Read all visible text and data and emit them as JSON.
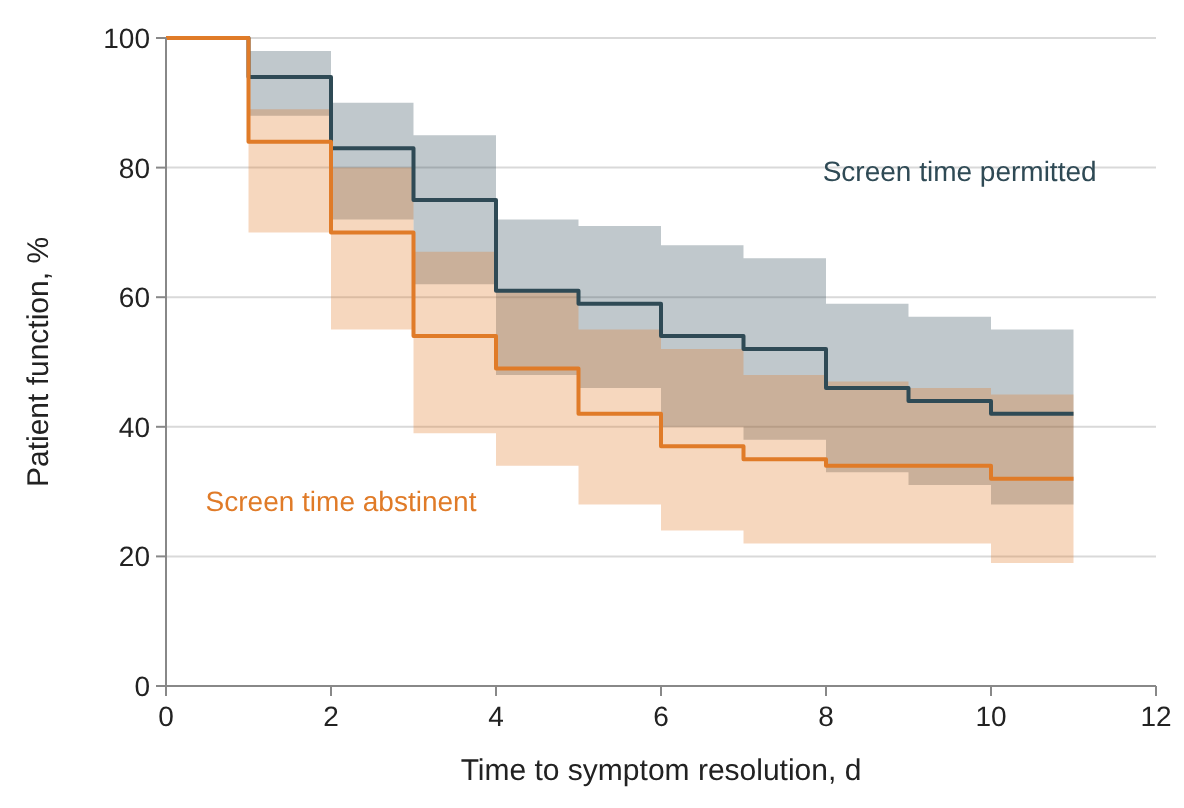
{
  "chart_data": {
    "type": "step",
    "xlabel": "Time to symptom resolution, d",
    "ylabel": "Patient function, %",
    "x": [
      0,
      1,
      2,
      3,
      4,
      5,
      6,
      7,
      8,
      9,
      10,
      11
    ],
    "series": [
      {
        "name": "Screen time permitted",
        "color": "#2f4a55",
        "values": [
          100,
          94,
          83,
          75,
          61,
          59,
          54,
          52,
          46,
          44,
          42,
          42
        ],
        "lower": [
          null,
          88,
          72,
          62,
          48,
          46,
          40,
          38,
          33,
          31,
          28,
          28
        ],
        "upper": [
          null,
          98,
          90,
          85,
          72,
          71,
          68,
          66,
          59,
          57,
          55,
          55
        ]
      },
      {
        "name": "Screen time abstinent",
        "color": "#e07b28",
        "values": [
          100,
          84,
          70,
          54,
          49,
          42,
          37,
          35,
          34,
          34,
          32,
          32
        ],
        "lower": [
          null,
          70,
          55,
          39,
          34,
          28,
          24,
          22,
          22,
          22,
          19,
          19
        ],
        "upper": [
          null,
          89,
          80,
          67,
          61,
          55,
          52,
          48,
          47,
          46,
          45,
          45
        ]
      }
    ],
    "xlim": [
      0,
      12
    ],
    "xticks": [
      0,
      2,
      4,
      6,
      8,
      10,
      12
    ],
    "ylim": [
      0,
      100
    ],
    "yticks": [
      0,
      20,
      40,
      60,
      80,
      100
    ],
    "grid": "y"
  }
}
